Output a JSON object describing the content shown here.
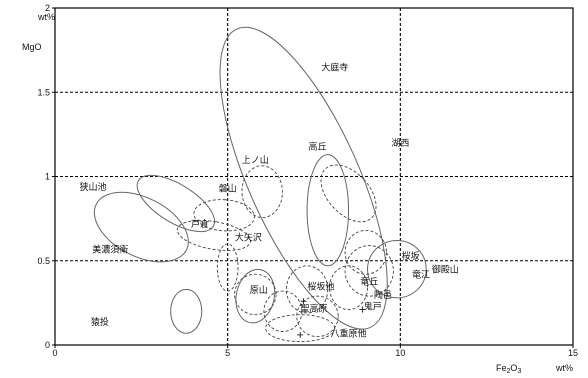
{
  "chart_data": {
    "type": "scatter",
    "title": "",
    "xlabel": "Fe2O3",
    "ylabel": "MgO",
    "x_unit": "wt%",
    "y_unit": "wt%",
    "xlim": [
      0,
      15
    ],
    "ylim": [
      0,
      2
    ],
    "x_ticks": [
      "0",
      "5",
      "10",
      "15"
    ],
    "y_ticks": [
      "0",
      "0.5",
      "1",
      "1.5",
      "2"
    ],
    "gridlines_x": [
      5,
      10
    ],
    "gridlines_y": [
      0.5,
      1,
      1.5
    ],
    "grid": "dashed",
    "regions": [
      {
        "name": "大庭寺",
        "style": "solid",
        "cx": 7.2,
        "cy": 0.99,
        "rx": 1.6,
        "ry": 0.97,
        "rot": 0.42,
        "label_x": 8.1,
        "label_y": 1.63
      },
      {
        "name": "湖西",
        "style": "solid",
        "cx": 7.9,
        "cy": 0.8,
        "rx": 0.6,
        "ry": 0.33,
        "rot": 0.0,
        "label_x": 10.0,
        "label_y": 1.18
      },
      {
        "name": "狭山池",
        "style": "solid",
        "cx": 2.5,
        "cy": 0.7,
        "rx": 0.85,
        "ry": 0.3,
        "rot": 1.1,
        "label_x": 1.1,
        "label_y": 0.92
      },
      {
        "name": "美濃須衛",
        "style": "solid",
        "cx": 3.5,
        "cy": 0.84,
        "rx": 0.55,
        "ry": 0.26,
        "rot": 1.02,
        "label_x": 1.6,
        "label_y": 0.55
      },
      {
        "name": "御殿山",
        "style": "solid",
        "cx": 9.9,
        "cy": 0.45,
        "rx": 0.85,
        "ry": 0.17,
        "rot": 0.0,
        "label_x": 11.3,
        "label_y": 0.43
      },
      {
        "name": "猿投",
        "style": "solid",
        "cx": 3.8,
        "cy": 0.2,
        "rx": 0.45,
        "ry": 0.13,
        "rot": 0.0,
        "label_x": 1.3,
        "label_y": 0.12
      },
      {
        "name": "陶邑",
        "style": "solid",
        "cx": 5.8,
        "cy": 0.29,
        "rx": 0.55,
        "ry": 0.16,
        "rot": -0.2,
        "label_x": 9.5,
        "label_y": 0.28
      },
      {
        "name": "高丘",
        "style": "dashed",
        "cx": 8.5,
        "cy": 0.9,
        "rx": 0.6,
        "ry": 0.2,
        "rot": 0.75,
        "label_x": 7.6,
        "label_y": 1.16
      },
      {
        "name": "上ノ山",
        "style": "dashed",
        "cx": 6.0,
        "cy": 0.91,
        "rx": 0.75,
        "ry": 0.12,
        "rot": 1.6,
        "label_x": 5.8,
        "label_y": 1.08
      },
      {
        "name": "磐山",
        "style": "dashed",
        "cx": 4.9,
        "cy": 0.77,
        "rx": 0.45,
        "ry": 0.18,
        "rot": 1.5,
        "label_x": 5.0,
        "label_y": 0.91
      },
      {
        "name": "戸倉",
        "style": "dashed",
        "cx": 4.6,
        "cy": 0.65,
        "rx": 0.4,
        "ry": 0.22,
        "rot": 1.4,
        "label_x": 4.2,
        "label_y": 0.7
      },
      {
        "name": "大矢沢",
        "style": "dashed",
        "cx": 5.0,
        "cy": 0.46,
        "rx": 0.3,
        "ry": 0.14,
        "rot": 0.0,
        "label_x": 5.6,
        "label_y": 0.62
      },
      {
        "name": "原山",
        "style": "dashed",
        "cx": 5.8,
        "cy": 0.3,
        "rx": 0.6,
        "ry": 0.12,
        "rot": 0.0,
        "label_x": 5.9,
        "label_y": 0.31
      },
      {
        "name": "桜坂他",
        "style": "dashed",
        "cx": 7.3,
        "cy": 0.33,
        "rx": 0.6,
        "ry": 0.14,
        "rot": 0.0,
        "label_x": 7.7,
        "label_y": 0.33
      },
      {
        "name": "聖高原",
        "style": "dashed",
        "cx": 6.6,
        "cy": 0.2,
        "rx": 0.55,
        "ry": 0.12,
        "rot": 0.0,
        "label_x": 7.5,
        "label_y": 0.2
      },
      {
        "name": "竜丘",
        "style": "dashed",
        "cx": 8.5,
        "cy": 0.34,
        "rx": 0.55,
        "ry": 0.13,
        "rot": 0.0,
        "label_x": 9.1,
        "label_y": 0.36
      },
      {
        "name": "鬼戸",
        "style": "dashed",
        "cx": 7.6,
        "cy": 0.17,
        "rx": 0.6,
        "ry": 0.12,
        "rot": 0.0,
        "label_x": 9.2,
        "label_y": 0.21
      },
      {
        "name": "八重原他",
        "style": "dashed",
        "cx": 7.1,
        "cy": 0.1,
        "rx": 1.0,
        "ry": 0.08,
        "rot": 0.0,
        "label_x": 8.5,
        "label_y": 0.05
      },
      {
        "name": "桜坂",
        "style": "dashed",
        "cx": 9.1,
        "cy": 0.44,
        "rx": 0.7,
        "ry": 0.15,
        "rot": 0.0,
        "label_x": 10.3,
        "label_y": 0.51
      },
      {
        "name": "竜江",
        "style": "dashed",
        "cx": 9.0,
        "cy": 0.55,
        "rx": 0.6,
        "ry": 0.13,
        "rot": 0.0,
        "label_x": 10.6,
        "label_y": 0.4
      }
    ],
    "markers": [
      {
        "x": 7.2,
        "y": 0.26
      },
      {
        "x": 8.9,
        "y": 0.21
      },
      {
        "x": 7.1,
        "y": 0.06
      }
    ]
  }
}
